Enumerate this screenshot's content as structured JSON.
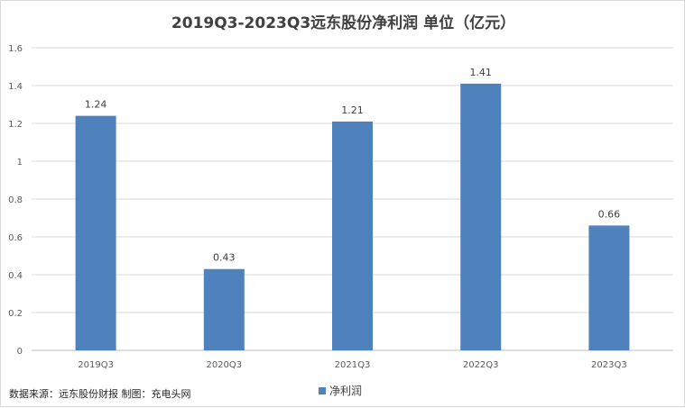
{
  "chart_data": {
    "type": "bar",
    "title": "2019Q3-2023Q3远东股份净利润  单位（亿元）",
    "categories": [
      "2019Q3",
      "2020Q3",
      "2021Q3",
      "2022Q3",
      "2023Q3"
    ],
    "series": [
      {
        "name": "净利润",
        "values": [
          1.24,
          0.43,
          1.21,
          1.41,
          0.66
        ]
      }
    ],
    "data_labels": [
      "1.24",
      "0.43",
      "1.21",
      "1.41",
      "0.66"
    ],
    "y_ticks": [
      "0",
      "0.2",
      "0.4",
      "0.6",
      "0.8",
      "1",
      "1.2",
      "1.4",
      "1.6"
    ],
    "ylim": [
      0,
      1.6
    ],
    "grid": true,
    "legend_position": "bottom-center",
    "bar_color": "#4F81BD",
    "source": "数据来源：远东股份财报  制图：充电头网"
  }
}
